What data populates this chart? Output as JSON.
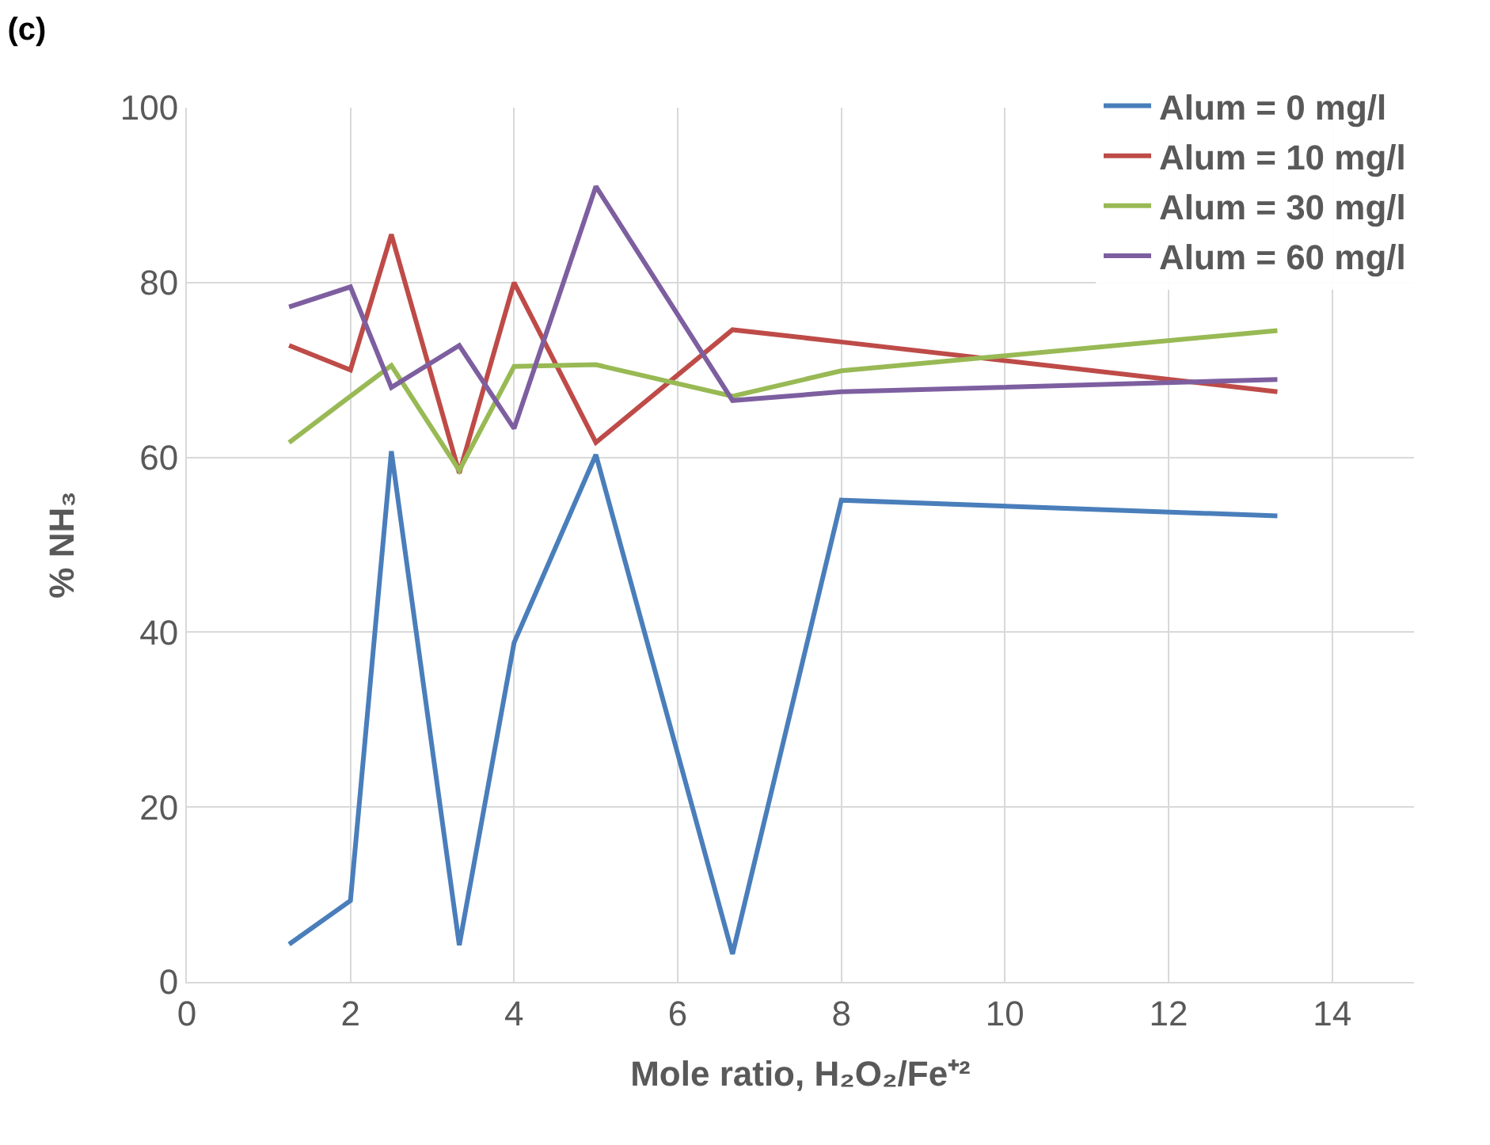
{
  "chart_data": {
    "type": "line",
    "title": "(c)",
    "xlabel": "Mole ratio, H₂O₂/Fe⁺²",
    "ylabel": "% NH₃",
    "x": [
      1.25,
      2,
      2.5,
      3.33,
      4,
      5,
      6.67,
      8,
      13.33
    ],
    "series": [
      {
        "name": "Alum = 0 mg/l",
        "color": "#4a7ebb",
        "values": [
          4.3,
          9.3,
          60.7,
          4.2,
          38.8,
          60.3,
          3.2,
          55.1,
          53.3
        ]
      },
      {
        "name": "Alum = 10 mg/l",
        "color": "#be4b48",
        "values": [
          72.8,
          70,
          85.5,
          58.2,
          80,
          61.7,
          74.6,
          73.2,
          67.5
        ]
      },
      {
        "name": "Alum = 30 mg/l",
        "color": "#98b954",
        "values": [
          61.7,
          67,
          70.5,
          58.5,
          70.4,
          70.6,
          67,
          69.9,
          74.5
        ]
      },
      {
        "name": "Alum = 60 mg/l",
        "color": "#7d5fa0",
        "values": [
          77.2,
          79.5,
          68,
          72.8,
          63.3,
          91,
          66.5,
          67.5,
          68.9
        ]
      }
    ],
    "xlim": [
      0,
      15
    ],
    "xticks": [
      0,
      2,
      4,
      6,
      8,
      10,
      12,
      14
    ],
    "ylim": [
      0,
      100
    ],
    "yticks": [
      0,
      20,
      40,
      60,
      80,
      100
    ],
    "grid": true,
    "legend": "top right",
    "marker": "none",
    "line_style": "solid"
  }
}
